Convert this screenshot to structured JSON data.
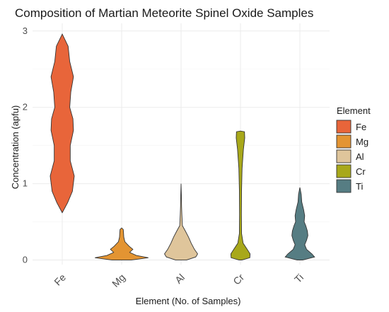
{
  "chart_data": {
    "type": "violin",
    "title": "Composition of Martian Meteorite Spinel Oxide Samples",
    "xlabel": "Element (No. of Samples)",
    "ylabel": "Concentration (apfu)",
    "categories": [
      "Fe",
      "Mg",
      "Al",
      "Cr",
      "Ti"
    ],
    "ylim": [
      -0.06,
      3.1
    ],
    "yticks": [
      0,
      1,
      2,
      3
    ],
    "grid": true,
    "legend": {
      "title": "Element",
      "placement": "right",
      "entries": [
        "Fe",
        "Mg",
        "Al",
        "Cr",
        "Ti"
      ]
    },
    "colors": {
      "Fe": "#e8653a",
      "Mg": "#e39432",
      "Al": "#dfc59b",
      "Cr": "#a8a81a",
      "Ti": "#567d83"
    },
    "distributions": [
      {
        "name": "Fe",
        "min": 0.62,
        "max": 2.96,
        "profile": [
          [
            0.62,
            0.0
          ],
          [
            0.75,
            0.2
          ],
          [
            0.9,
            0.38
          ],
          [
            1.1,
            0.45
          ],
          [
            1.3,
            0.3
          ],
          [
            1.5,
            0.3
          ],
          [
            1.7,
            0.42
          ],
          [
            1.85,
            0.4
          ],
          [
            2.0,
            0.28
          ],
          [
            2.2,
            0.32
          ],
          [
            2.4,
            0.42
          ],
          [
            2.6,
            0.28
          ],
          [
            2.8,
            0.22
          ],
          [
            2.96,
            0.0
          ]
        ]
      },
      {
        "name": "Mg",
        "min": 0.0,
        "max": 0.42,
        "profile": [
          [
            0.0,
            0.35
          ],
          [
            0.03,
            1.0
          ],
          [
            0.06,
            0.55
          ],
          [
            0.1,
            0.3
          ],
          [
            0.14,
            0.42
          ],
          [
            0.18,
            0.28
          ],
          [
            0.24,
            0.12
          ],
          [
            0.3,
            0.08
          ],
          [
            0.36,
            0.07
          ],
          [
            0.4,
            0.06
          ],
          [
            0.42,
            0.0
          ]
        ]
      },
      {
        "name": "Al",
        "min": 0.0,
        "max": 1.0,
        "profile": [
          [
            0.0,
            0.2
          ],
          [
            0.04,
            0.55
          ],
          [
            0.08,
            0.62
          ],
          [
            0.14,
            0.5
          ],
          [
            0.22,
            0.38
          ],
          [
            0.3,
            0.28
          ],
          [
            0.38,
            0.16
          ],
          [
            0.45,
            0.05
          ],
          [
            0.6,
            0.03
          ],
          [
            0.7,
            0.02
          ],
          [
            0.85,
            0.012
          ],
          [
            1.0,
            0.0
          ]
        ]
      },
      {
        "name": "Cr",
        "min": 0.0,
        "max": 1.69,
        "profile": [
          [
            0.0,
            0.05
          ],
          [
            0.03,
            0.35
          ],
          [
            0.08,
            0.36
          ],
          [
            0.14,
            0.25
          ],
          [
            0.22,
            0.1
          ],
          [
            0.35,
            0.04
          ],
          [
            0.6,
            0.035
          ],
          [
            0.9,
            0.04
          ],
          [
            1.2,
            0.06
          ],
          [
            1.45,
            0.11
          ],
          [
            1.6,
            0.16
          ],
          [
            1.68,
            0.15
          ],
          [
            1.69,
            0.0
          ]
        ]
      },
      {
        "name": "Ti",
        "min": 0.0,
        "max": 0.95,
        "profile": [
          [
            0.0,
            0.1
          ],
          [
            0.04,
            0.55
          ],
          [
            0.08,
            0.45
          ],
          [
            0.14,
            0.25
          ],
          [
            0.2,
            0.18
          ],
          [
            0.26,
            0.25
          ],
          [
            0.32,
            0.3
          ],
          [
            0.38,
            0.28
          ],
          [
            0.45,
            0.22
          ],
          [
            0.5,
            0.16
          ],
          [
            0.58,
            0.18
          ],
          [
            0.66,
            0.14
          ],
          [
            0.76,
            0.07
          ],
          [
            0.86,
            0.05
          ],
          [
            0.95,
            0.0
          ]
        ]
      }
    ]
  }
}
